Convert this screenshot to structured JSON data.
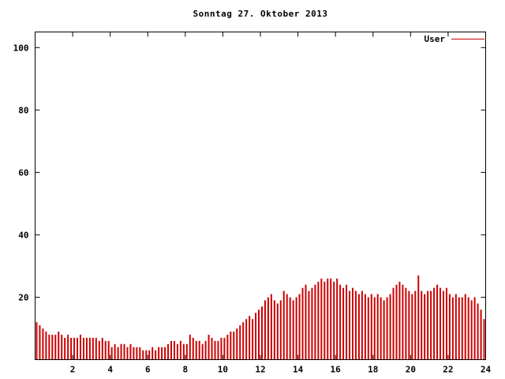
{
  "title": "Sonntag 27. Oktober 2013",
  "legend": {
    "label": "User"
  },
  "colors": {
    "series": "#cc0000",
    "axis": "#000000",
    "background": "#ffffff"
  },
  "axes": {
    "x_tick_labels": [
      "2",
      "4",
      "6",
      "8",
      "10",
      "12",
      "14",
      "16",
      "18",
      "20",
      "22",
      "24"
    ],
    "x_tick_values": [
      2,
      4,
      6,
      8,
      10,
      12,
      14,
      16,
      18,
      20,
      22,
      24
    ],
    "y_tick_labels": [
      "20",
      "40",
      "60",
      "80",
      "100"
    ],
    "y_tick_values": [
      20,
      40,
      60,
      80,
      100
    ]
  },
  "chart_data": {
    "type": "bar",
    "title": "Sonntag 27. Oktober 2013",
    "series_name": "User",
    "xlabel": "",
    "ylabel": "",
    "x_unit": "hour of day",
    "x_start": 0,
    "x_step_minutes": 10,
    "xlim": [
      0,
      24
    ],
    "ylim": [
      0,
      105
    ],
    "legend_position": "top-right",
    "grid": false,
    "values": [
      12,
      11,
      10,
      9,
      8,
      8,
      8,
      9,
      8,
      7,
      8,
      7,
      7,
      7,
      8,
      7,
      7,
      7,
      7,
      7,
      6,
      7,
      6,
      6,
      4,
      5,
      4,
      5,
      5,
      4,
      5,
      4,
      4,
      4,
      3,
      3,
      3,
      4,
      3,
      4,
      4,
      4,
      5,
      6,
      6,
      5,
      6,
      5,
      5,
      8,
      7,
      6,
      6,
      5,
      6,
      8,
      7,
      6,
      6,
      7,
      7,
      8,
      9,
      9,
      10,
      11,
      12,
      13,
      14,
      13,
      15,
      16,
      17,
      19,
      20,
      21,
      19,
      18,
      19,
      22,
      21,
      20,
      19,
      20,
      21,
      23,
      24,
      22,
      23,
      24,
      25,
      26,
      25,
      26,
      26,
      25,
      26,
      24,
      23,
      24,
      22,
      23,
      22,
      21,
      22,
      21,
      20,
      21,
      20,
      21,
      20,
      19,
      20,
      21,
      23,
      24,
      25,
      24,
      23,
      22,
      21,
      22,
      27,
      22,
      21,
      22,
      22,
      23,
      24,
      23,
      22,
      23,
      21,
      20,
      21,
      20,
      20,
      21,
      20,
      19,
      20,
      18,
      16,
      13
    ]
  }
}
